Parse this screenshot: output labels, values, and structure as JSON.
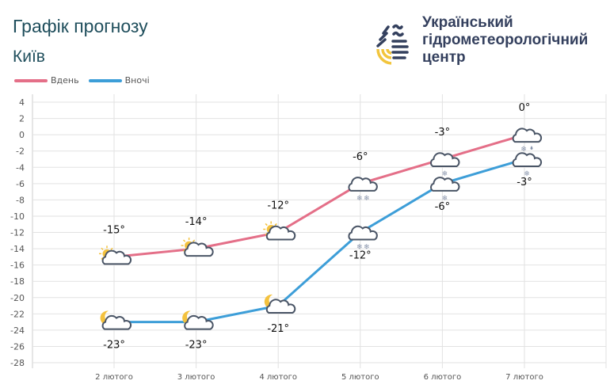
{
  "header": {
    "title": "Графік прогнозу",
    "city": "Київ",
    "organization": [
      "Український",
      "гідрометеорологічний",
      "центр"
    ]
  },
  "colors": {
    "day": "#e46f88",
    "night": "#3d9ed8",
    "title": "#1f4e5c",
    "icon_stroke": "#4a5566",
    "sun": "#f4c23e"
  },
  "chart_data": {
    "type": "line",
    "categories": [
      "2 лютого",
      "3 лютого",
      "4 лютого",
      "5 лютого",
      "6 лютого",
      "7 лютого"
    ],
    "series": [
      {
        "name": "Вдень",
        "values": [
          -15,
          -14,
          -12,
          -6,
          -3,
          0
        ],
        "labels": [
          "-15°",
          "-14°",
          "-12°",
          "-6°",
          "-3°",
          "0°"
        ],
        "icons": [
          "sun-cloud",
          "sun-cloud",
          "sun-cloud",
          "cloud-snow",
          "cloud-snow-light",
          "cloud-snow-rain"
        ]
      },
      {
        "name": "Вночі",
        "values": [
          -23,
          -23,
          -21,
          -12,
          -6,
          -3
        ],
        "labels": [
          "-23°",
          "-23°",
          "-21°",
          "-12°",
          "-6°",
          "-3°"
        ],
        "icons": [
          "moon-cloud",
          "moon-cloud",
          "moon-cloud",
          "cloud-snow",
          "cloud-snow-light",
          "cloud-snow-light"
        ]
      }
    ],
    "ylim": [
      -28,
      4
    ],
    "yticks": [
      "4",
      "2",
      "0",
      "-2",
      "-4",
      "-6",
      "-8",
      "-10",
      "-12",
      "-14",
      "-16",
      "-18",
      "-20",
      "-22",
      "-24",
      "-26",
      "-28"
    ],
    "grid": true,
    "legend": "top-left"
  }
}
